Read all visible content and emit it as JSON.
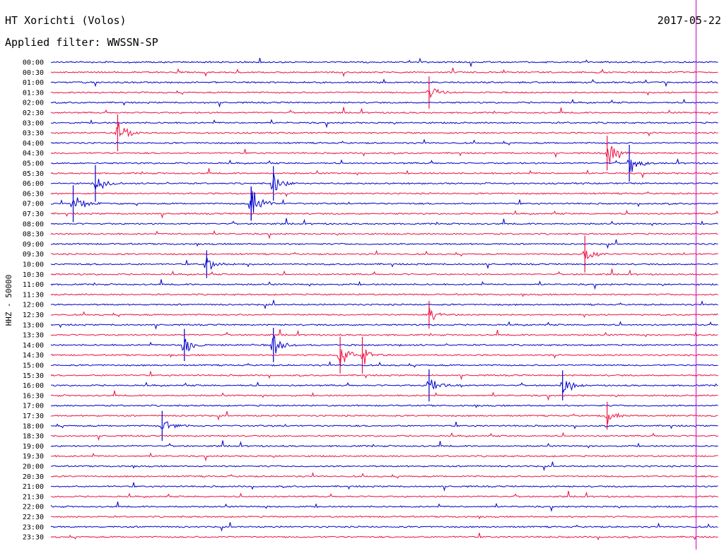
{
  "header": {
    "station": "HT Xorichti (Volos)",
    "filter": "Applied filter: WWSSN-SP",
    "date": "2017-05-22"
  },
  "chart_data": {
    "type": "line",
    "title": "HT Xorichti (Volos)",
    "subtitle": "Applied filter: WWSSN-SP",
    "ylabel": "HHZ - 50000",
    "rows": [
      "00:00",
      "00:30",
      "01:00",
      "01:30",
      "02:00",
      "02:30",
      "03:00",
      "03:30",
      "04:00",
      "04:30",
      "05:00",
      "05:30",
      "06:00",
      "06:30",
      "07:00",
      "07:30",
      "08:00",
      "08:30",
      "09:00",
      "09:30",
      "10:00",
      "10:30",
      "11:00",
      "11:30",
      "12:00",
      "12:30",
      "13:00",
      "13:30",
      "14:00",
      "14:30",
      "15:00",
      "15:30",
      "16:00",
      "16:30",
      "17:00",
      "17:30",
      "18:00",
      "18:30",
      "19:00",
      "19:30",
      "20:00",
      "20:30",
      "21:00",
      "21:30",
      "22:00",
      "22:30",
      "23:00",
      "23:30"
    ],
    "row_colors": [
      "#0000cc",
      "#ee1144"
    ],
    "events": [
      {
        "row": 3,
        "minute": 17,
        "amplitude": 0.8
      },
      {
        "row": 7,
        "minute": 3,
        "amplitude": 1.0
      },
      {
        "row": 9,
        "minute": 25,
        "amplitude": 0.9
      },
      {
        "row": 10,
        "minute": 26,
        "amplitude": 1.0
      },
      {
        "row": 12,
        "minute": 2,
        "amplitude": 1.0
      },
      {
        "row": 12,
        "minute": 10,
        "amplitude": 0.9
      },
      {
        "row": 14,
        "minute": 1,
        "amplitude": 1.0
      },
      {
        "row": 14,
        "minute": 9,
        "amplitude": 0.9
      },
      {
        "row": 14,
        "minute": 9,
        "amplitude": 0.8
      },
      {
        "row": 19,
        "minute": 24,
        "amplitude": 1.0
      },
      {
        "row": 20,
        "minute": 7,
        "amplitude": 0.6
      },
      {
        "row": 25,
        "minute": 17,
        "amplitude": 0.6
      },
      {
        "row": 28,
        "minute": 6,
        "amplitude": 0.8
      },
      {
        "row": 28,
        "minute": 10,
        "amplitude": 0.9
      },
      {
        "row": 29,
        "minute": 13,
        "amplitude": 1.0
      },
      {
        "row": 29,
        "minute": 14,
        "amplitude": 1.0
      },
      {
        "row": 32,
        "minute": 17,
        "amplitude": 0.8
      },
      {
        "row": 32,
        "minute": 23,
        "amplitude": 0.7
      },
      {
        "row": 35,
        "minute": 25,
        "amplitude": 0.6
      },
      {
        "row": 36,
        "minute": 5,
        "amplitude": 0.7
      }
    ],
    "cursor_minute": 29,
    "grid": false
  }
}
